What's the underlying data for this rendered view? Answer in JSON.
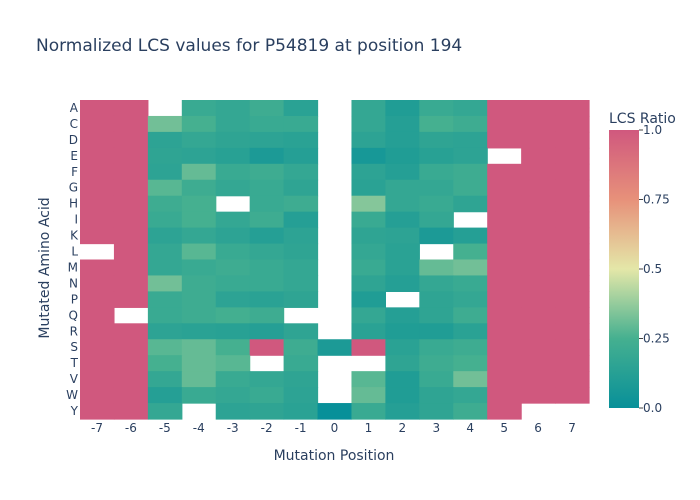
{
  "chart_data": {
    "type": "heatmap",
    "title": "Normalized LCS values for P54819 at position 194",
    "xlabel": "Mutation Position",
    "ylabel": "Mutated Amino Acid",
    "x": [
      "-7",
      "-6",
      "-5",
      "-4",
      "-3",
      "-2",
      "-1",
      "0",
      "1",
      "2",
      "3",
      "4",
      "5",
      "6",
      "7"
    ],
    "y": [
      "A",
      "C",
      "D",
      "E",
      "F",
      "G",
      "H",
      "I",
      "K",
      "L",
      "M",
      "N",
      "P",
      "Q",
      "R",
      "S",
      "T",
      "V",
      "W",
      "Y"
    ],
    "z": [
      [
        1.0,
        1.0,
        null,
        0.2,
        0.18,
        0.22,
        0.14,
        null,
        0.18,
        0.1,
        0.2,
        0.18,
        1.0,
        1.0,
        1.0
      ],
      [
        1.0,
        1.0,
        0.32,
        0.25,
        0.18,
        0.2,
        0.2,
        null,
        0.18,
        0.12,
        0.25,
        0.22,
        1.0,
        1.0,
        1.0
      ],
      [
        1.0,
        1.0,
        0.15,
        0.18,
        0.16,
        0.15,
        0.14,
        null,
        0.15,
        0.12,
        0.16,
        0.15,
        1.0,
        1.0,
        1.0
      ],
      [
        1.0,
        1.0,
        0.16,
        0.15,
        0.13,
        0.08,
        0.12,
        null,
        0.06,
        0.1,
        0.13,
        0.15,
        null,
        1.0,
        1.0
      ],
      [
        1.0,
        1.0,
        0.15,
        0.3,
        0.2,
        0.22,
        0.18,
        null,
        0.15,
        0.12,
        0.2,
        0.22,
        1.0,
        1.0,
        1.0
      ],
      [
        1.0,
        1.0,
        0.28,
        0.22,
        0.18,
        0.2,
        0.16,
        null,
        0.14,
        0.18,
        0.18,
        0.22,
        1.0,
        1.0,
        1.0
      ],
      [
        1.0,
        1.0,
        0.22,
        0.25,
        null,
        0.2,
        0.22,
        null,
        0.35,
        0.18,
        0.2,
        0.16,
        1.0,
        1.0,
        1.0
      ],
      [
        1.0,
        1.0,
        0.2,
        0.25,
        0.18,
        0.22,
        0.12,
        null,
        0.2,
        0.12,
        0.18,
        null,
        1.0,
        1.0,
        1.0
      ],
      [
        1.0,
        1.0,
        0.15,
        0.18,
        0.15,
        0.12,
        0.15,
        null,
        0.16,
        0.15,
        0.08,
        0.12,
        1.0,
        1.0,
        1.0
      ],
      [
        null,
        1.0,
        0.18,
        0.28,
        0.2,
        0.18,
        0.16,
        null,
        0.18,
        0.14,
        null,
        0.25,
        1.0,
        1.0,
        1.0
      ],
      [
        1.0,
        1.0,
        0.18,
        0.2,
        0.22,
        0.2,
        0.18,
        null,
        0.2,
        0.14,
        0.3,
        0.32,
        1.0,
        1.0,
        1.0
      ],
      [
        1.0,
        1.0,
        0.32,
        0.22,
        0.2,
        0.2,
        0.18,
        null,
        0.16,
        0.12,
        0.18,
        0.2,
        1.0,
        1.0,
        1.0
      ],
      [
        1.0,
        1.0,
        0.2,
        0.22,
        0.15,
        0.14,
        0.16,
        null,
        0.1,
        null,
        0.16,
        0.18,
        1.0,
        1.0,
        1.0
      ],
      [
        1.0,
        null,
        0.2,
        0.22,
        0.24,
        0.22,
        null,
        null,
        0.18,
        0.12,
        0.16,
        0.22,
        1.0,
        1.0,
        1.0
      ],
      [
        1.0,
        1.0,
        0.15,
        0.14,
        0.13,
        0.12,
        0.16,
        null,
        0.14,
        0.1,
        0.1,
        0.14,
        1.0,
        1.0,
        1.0
      ],
      [
        1.0,
        1.0,
        0.28,
        0.3,
        0.25,
        1.0,
        0.22,
        0.08,
        1.0,
        0.14,
        0.2,
        0.22,
        1.0,
        1.0,
        1.0
      ],
      [
        1.0,
        1.0,
        0.25,
        0.3,
        0.28,
        null,
        0.2,
        null,
        null,
        0.16,
        0.22,
        0.25,
        1.0,
        1.0,
        1.0
      ],
      [
        1.0,
        1.0,
        0.18,
        0.3,
        0.2,
        0.18,
        0.16,
        null,
        0.28,
        0.1,
        0.2,
        0.32,
        1.0,
        1.0,
        1.0
      ],
      [
        1.0,
        1.0,
        0.12,
        0.2,
        0.18,
        0.2,
        0.15,
        null,
        0.3,
        0.1,
        0.16,
        0.18,
        1.0,
        1.0,
        1.0
      ],
      [
        1.0,
        1.0,
        0.18,
        null,
        0.15,
        0.16,
        0.14,
        0.0,
        0.2,
        0.12,
        0.16,
        0.22,
        1.0,
        null,
        null
      ]
    ],
    "zlim": [
      0,
      1
    ],
    "colorscale": [
      [
        0.0,
        "#089099"
      ],
      [
        0.25,
        "#45b090"
      ],
      [
        0.5,
        "#e4e7a8"
      ],
      [
        0.75,
        "#e7917a"
      ],
      [
        1.0,
        "#d0587e"
      ]
    ],
    "colorbar": {
      "title": "LCS Ratio",
      "ticks": [
        0,
        0.25,
        0.5,
        0.75,
        1
      ],
      "ticklabels": [
        "0.0",
        "0.25",
        "0.5",
        "0.75",
        "1.0"
      ]
    },
    "grid": false
  }
}
